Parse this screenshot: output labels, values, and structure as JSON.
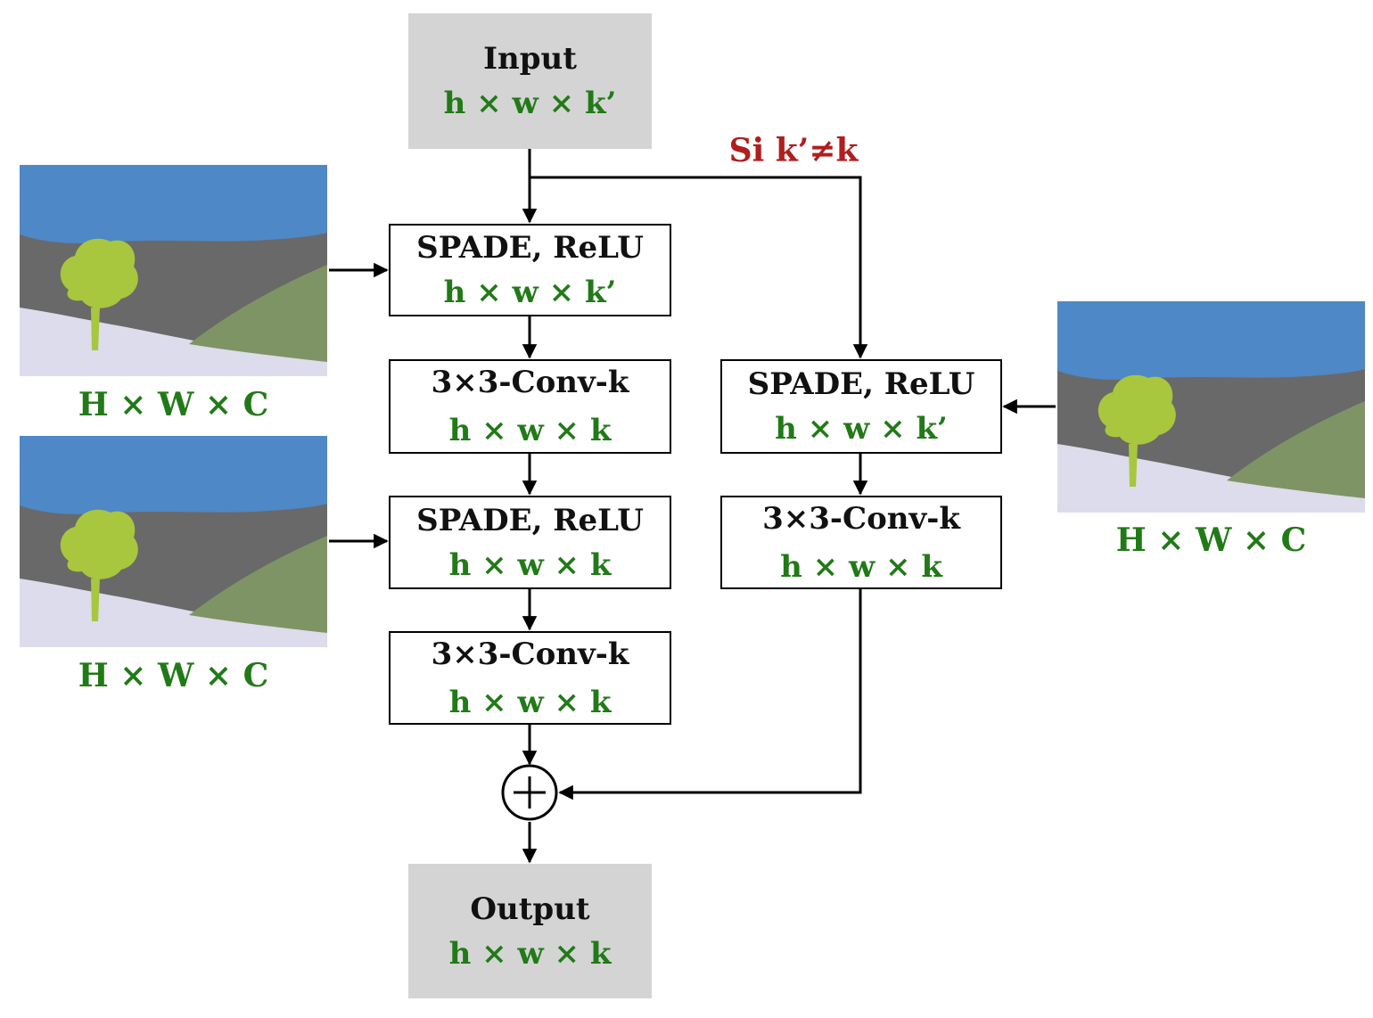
{
  "input": {
    "title": "Input",
    "dims": "h × w × k’"
  },
  "output": {
    "title": "Output",
    "dims": "h × w × k"
  },
  "condition": "Si k’≠k",
  "main_path": [
    {
      "title": "SPADE, ReLU",
      "dims": "h × w × k’"
    },
    {
      "title": "3×3-Conv-k",
      "dims": "h × w × k"
    },
    {
      "title": "SPADE, ReLU",
      "dims": "h × w × k"
    },
    {
      "title": "3×3-Conv-k",
      "dims": "h × w × k"
    }
  ],
  "shortcut_path": [
    {
      "title": "SPADE, ReLU",
      "dims": "h × w × k’"
    },
    {
      "title": "3×3-Conv-k",
      "dims": "h × w × k"
    }
  ],
  "segmaps": [
    {
      "caption": "H × W × C"
    },
    {
      "caption": "H × W × C"
    },
    {
      "caption": "H × W × C"
    }
  ],
  "colors": {
    "sky": "#4e88c6",
    "road": "#696969",
    "ground": "#dcdcec",
    "grass": "#7f9465",
    "tree": "#a8c63e",
    "dims_green": "#217a17",
    "condition_red": "#b01e1e"
  }
}
